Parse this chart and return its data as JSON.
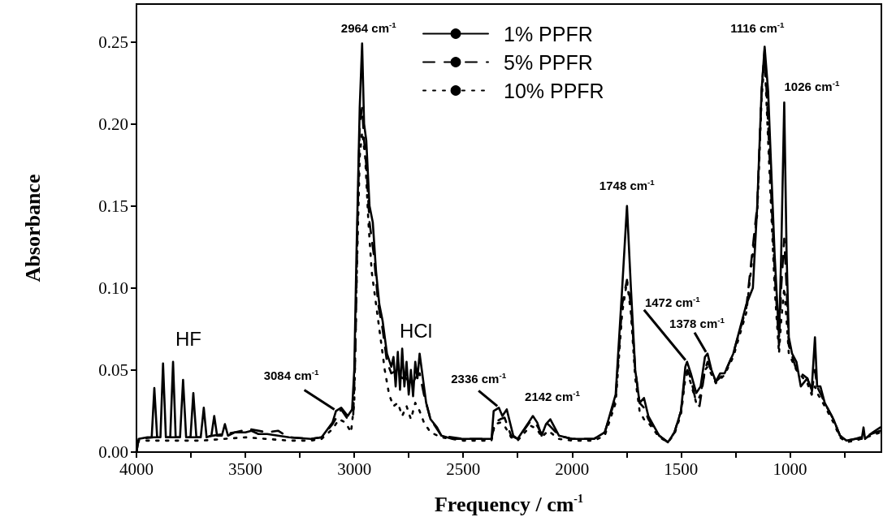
{
  "chart_data": {
    "type": "line",
    "xlabel": "Frequency / cm$^{-1}$",
    "ylabel": "Absorbance",
    "xlim": [
      4000,
      580
    ],
    "xticks": [
      4000,
      {
        "value": 3750,
        "label": null
      },
      3500,
      {
        "value": 3250,
        "label": null
      },
      3000,
      {
        "value": 2750,
        "label": null
      },
      2500,
      {
        "value": 2250,
        "label": null
      },
      2000,
      {
        "value": 1750,
        "label": null
      },
      1500,
      {
        "value": 1250,
        "label": null
      },
      1000,
      {
        "value": 750,
        "label": null
      }
    ],
    "ylim": [
      0,
      0.273
    ],
    "yticks": [
      {
        "value": 0,
        "label": "0.00"
      },
      {
        "value": 0.05,
        "label": "0.05"
      },
      {
        "value": 0.1,
        "label": "0.10"
      },
      {
        "value": 0.15,
        "label": "0.15"
      },
      {
        "value": 0.2,
        "label": "0.20"
      },
      {
        "value": 0.25,
        "label": "0.25"
      }
    ],
    "grid": false,
    "legend": "top",
    "series": [
      {
        "name": "1% PPFR",
        "color": "#000000",
        "line_style": "solid",
        "x": [
          4000,
          3990,
          3950,
          3930,
          3918,
          3905,
          3890,
          3878,
          3865,
          3845,
          3832,
          3820,
          3800,
          3786,
          3772,
          3752,
          3739,
          3725,
          3705,
          3691,
          3678,
          3656,
          3643,
          3630,
          3608,
          3594,
          3580,
          3550,
          3500,
          3472,
          3440,
          3400,
          3300,
          3200,
          3150,
          3100,
          3084,
          3060,
          3030,
          3010,
          3000,
          2990,
          2975,
          2964,
          2955,
          2945,
          2930,
          2915,
          2900,
          2885,
          2870,
          2850,
          2830,
          2820,
          2810,
          2800,
          2790,
          2780,
          2770,
          2760,
          2750,
          2740,
          2730,
          2720,
          2710,
          2700,
          2690,
          2670,
          2650,
          2620,
          2600,
          2550,
          2400,
          2370,
          2360,
          2336,
          2320,
          2300,
          2270,
          2250,
          2200,
          2180,
          2160,
          2140,
          2120,
          2100,
          2060,
          2000,
          1900,
          1850,
          1800,
          1770,
          1748,
          1730,
          1710,
          1690,
          1670,
          1650,
          1600,
          1560,
          1530,
          1500,
          1480,
          1472,
          1455,
          1430,
          1410,
          1390,
          1378,
          1360,
          1340,
          1320,
          1300,
          1260,
          1230,
          1200,
          1170,
          1150,
          1130,
          1116,
          1100,
          1070,
          1050,
          1040,
          1026,
          1015,
          1005,
          990,
          970,
          950,
          920,
          900,
          885,
          875,
          860,
          840,
          800,
          770,
          740,
          700,
          670,
          662,
          655,
          620,
          585
        ],
        "values": [
          0,
          0.008,
          0.009,
          0.009,
          0.039,
          0.009,
          0.009,
          0.054,
          0.009,
          0.009,
          0.055,
          0.009,
          0.009,
          0.044,
          0.009,
          0.009,
          0.036,
          0.009,
          0.009,
          0.027,
          0.009,
          0.01,
          0.022,
          0.01,
          0.01,
          0.017,
          0.01,
          0.012,
          0.012,
          0.013,
          0.011,
          0.011,
          0.009,
          0.008,
          0.009,
          0.018,
          0.025,
          0.027,
          0.022,
          0.026,
          0.05,
          0.12,
          0.21,
          0.249,
          0.2,
          0.19,
          0.15,
          0.14,
          0.11,
          0.09,
          0.08,
          0.06,
          0.052,
          0.058,
          0.04,
          0.061,
          0.038,
          0.063,
          0.04,
          0.055,
          0.035,
          0.05,
          0.034,
          0.055,
          0.045,
          0.06,
          0.05,
          0.03,
          0.02,
          0.015,
          0.01,
          0.008,
          0.008,
          0.008,
          0.025,
          0.027,
          0.022,
          0.026,
          0.01,
          0.008,
          0.018,
          0.022,
          0.018,
          0.01,
          0.017,
          0.02,
          0.01,
          0.008,
          0.008,
          0.012,
          0.035,
          0.1,
          0.15,
          0.1,
          0.05,
          0.03,
          0.033,
          0.022,
          0.01,
          0.006,
          0.012,
          0.025,
          0.052,
          0.055,
          0.048,
          0.036,
          0.04,
          0.058,
          0.06,
          0.05,
          0.043,
          0.048,
          0.048,
          0.06,
          0.075,
          0.09,
          0.1,
          0.15,
          0.22,
          0.247,
          0.22,
          0.12,
          0.07,
          0.12,
          0.213,
          0.12,
          0.07,
          0.06,
          0.055,
          0.04,
          0.045,
          0.038,
          0.07,
          0.04,
          0.04,
          0.03,
          0.02,
          0.01,
          0.007,
          0.008,
          0.008,
          0.015,
          0.008,
          0.012,
          0.015
        ]
      },
      {
        "name": "5% PPFR",
        "color": "#000000",
        "line_style": "dashed",
        "x": [
          4000,
          3990,
          3920,
          3850,
          3780,
          3700,
          3600,
          3550,
          3480,
          3400,
          3350,
          3300,
          3200,
          3150,
          3100,
          3060,
          3030,
          3005,
          2995,
          2985,
          2975,
          2964,
          2955,
          2945,
          2930,
          2910,
          2890,
          2870,
          2850,
          2830,
          2800,
          2780,
          2760,
          2740,
          2720,
          2700,
          2680,
          2650,
          2600,
          2500,
          2370,
          2355,
          2330,
          2310,
          2280,
          2250,
          2190,
          2160,
          2140,
          2110,
          2060,
          2000,
          1900,
          1850,
          1800,
          1770,
          1748,
          1730,
          1710,
          1690,
          1670,
          1650,
          1600,
          1560,
          1530,
          1500,
          1480,
          1470,
          1455,
          1430,
          1415,
          1390,
          1378,
          1340,
          1300,
          1260,
          1200,
          1150,
          1130,
          1116,
          1100,
          1070,
          1050,
          1040,
          1026,
          1015,
          1005,
          970,
          920,
          900,
          885,
          875,
          840,
          800,
          770,
          740,
          700,
          650,
          585
        ],
        "values": [
          0,
          0.008,
          0.009,
          0.009,
          0.009,
          0.009,
          0.011,
          0.012,
          0.014,
          0.012,
          0.013,
          0.009,
          0.008,
          0.009,
          0.017,
          0.026,
          0.02,
          0.022,
          0.06,
          0.14,
          0.2,
          0.21,
          0.19,
          0.175,
          0.14,
          0.12,
          0.09,
          0.075,
          0.055,
          0.048,
          0.05,
          0.045,
          0.045,
          0.04,
          0.045,
          0.048,
          0.035,
          0.02,
          0.01,
          0.008,
          0.008,
          0.018,
          0.02,
          0.021,
          0.01,
          0.008,
          0.019,
          0.016,
          0.011,
          0.017,
          0.01,
          0.008,
          0.008,
          0.012,
          0.033,
          0.09,
          0.105,
          0.09,
          0.05,
          0.03,
          0.027,
          0.02,
          0.01,
          0.006,
          0.012,
          0.025,
          0.048,
          0.05,
          0.045,
          0.03,
          0.028,
          0.05,
          0.055,
          0.043,
          0.048,
          0.06,
          0.088,
          0.15,
          0.22,
          0.245,
          0.2,
          0.11,
          0.065,
          0.1,
          0.13,
          0.1,
          0.065,
          0.05,
          0.045,
          0.036,
          0.05,
          0.04,
          0.03,
          0.02,
          0.01,
          0.007,
          0.008,
          0.01,
          0.013
        ]
      },
      {
        "name": "10% PPFR",
        "color": "#000000",
        "line_style": "dotted",
        "x": [
          4000,
          3990,
          3900,
          3800,
          3700,
          3600,
          3500,
          3400,
          3300,
          3200,
          3150,
          3100,
          3070,
          3040,
          3015,
          3000,
          2990,
          2975,
          2964,
          2950,
          2935,
          2920,
          2900,
          2880,
          2860,
          2840,
          2820,
          2800,
          2780,
          2760,
          2740,
          2720,
          2700,
          2680,
          2650,
          2600,
          2500,
          2370,
          2355,
          2330,
          2310,
          2280,
          2250,
          2190,
          2160,
          2140,
          2110,
          2060,
          2000,
          1900,
          1850,
          1800,
          1770,
          1748,
          1730,
          1710,
          1690,
          1670,
          1650,
          1600,
          1560,
          1530,
          1500,
          1480,
          1470,
          1455,
          1430,
          1410,
          1390,
          1378,
          1340,
          1300,
          1260,
          1200,
          1150,
          1130,
          1116,
          1100,
          1070,
          1050,
          1040,
          1026,
          1015,
          1005,
          970,
          920,
          900,
          885,
          875,
          840,
          800,
          770,
          740,
          700,
          650,
          585
        ],
        "values": [
          0,
          0.007,
          0.007,
          0.007,
          0.007,
          0.008,
          0.009,
          0.008,
          0.007,
          0.007,
          0.008,
          0.014,
          0.02,
          0.018,
          0.012,
          0.03,
          0.1,
          0.18,
          0.195,
          0.18,
          0.14,
          0.11,
          0.09,
          0.07,
          0.05,
          0.035,
          0.028,
          0.03,
          0.022,
          0.028,
          0.02,
          0.03,
          0.025,
          0.018,
          0.012,
          0.009,
          0.007,
          0.007,
          0.017,
          0.018,
          0.016,
          0.009,
          0.007,
          0.016,
          0.014,
          0.009,
          0.013,
          0.008,
          0.007,
          0.007,
          0.01,
          0.03,
          0.085,
          0.104,
          0.085,
          0.045,
          0.025,
          0.02,
          0.018,
          0.009,
          0.006,
          0.011,
          0.023,
          0.045,
          0.048,
          0.042,
          0.03,
          0.035,
          0.05,
          0.052,
          0.042,
          0.047,
          0.058,
          0.085,
          0.145,
          0.215,
          0.24,
          0.19,
          0.1,
          0.06,
          0.08,
          0.1,
          0.08,
          0.06,
          0.05,
          0.042,
          0.035,
          0.04,
          0.036,
          0.028,
          0.018,
          0.009,
          0.006,
          0.007,
          0.009,
          0.012
        ]
      }
    ],
    "annotations": [
      {
        "text": "2964 cm$^{-1}$",
        "x": 2964,
        "y": 0.249
      },
      {
        "text": "3084 cm$^{-1}$",
        "x": 3084,
        "y": 0.025
      },
      {
        "text": "2336 cm$^{-1}$",
        "x": 2336,
        "y": 0.027
      },
      "2142 cm$^{-1}$",
      {
        "text": "1748 cm$^{-1}$",
        "x": 1748,
        "y": 0.15
      },
      {
        "text": "1472 cm$^{-1}$",
        "x": 1472,
        "y": 0.055
      },
      {
        "text": "1378 cm$^{-1}$",
        "x": 1378,
        "y": 0.06
      },
      {
        "text": "1116 cm$^{-1}$",
        "x": 1116,
        "y": 0.247
      },
      {
        "text": "1026 cm$^{-1}$",
        "x": 1026,
        "y": 0.213
      },
      "HF",
      "HCl"
    ]
  }
}
